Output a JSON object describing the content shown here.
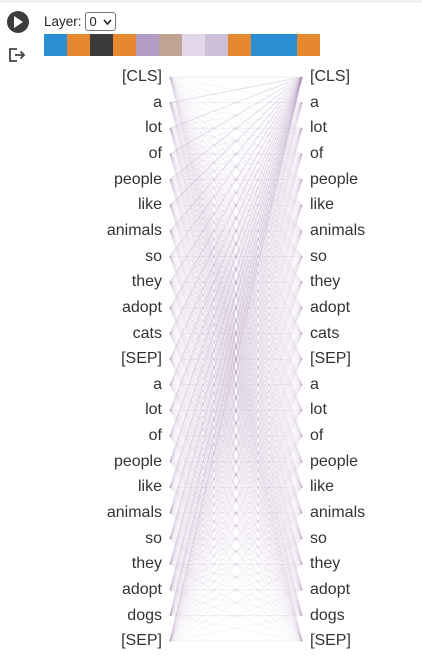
{
  "layer": {
    "label": "Layer:",
    "selected": "0"
  },
  "head_colors": [
    "#2a8ed2",
    "#e5882f",
    "#3a3a3a",
    "#e5882f",
    "#b39cc4",
    "#8a5a3a",
    "#c9b6d6",
    "#a48ab6",
    "#e5882f",
    "#2a8ed2",
    "#2a8ed2",
    "#e5882f"
  ],
  "head_dim": [
    false,
    false,
    false,
    false,
    false,
    true,
    true,
    true,
    false,
    false,
    false,
    false
  ],
  "tokens": [
    "[CLS]",
    "a",
    "lot",
    "of",
    "people",
    "like",
    "animals",
    "so",
    "they",
    "adopt",
    "cats",
    "[SEP]",
    "a",
    "lot",
    "of",
    "people",
    "like",
    "animals",
    "so",
    "they",
    "adopt",
    "dogs",
    "[SEP]"
  ],
  "attention_color": "#a48ab6"
}
